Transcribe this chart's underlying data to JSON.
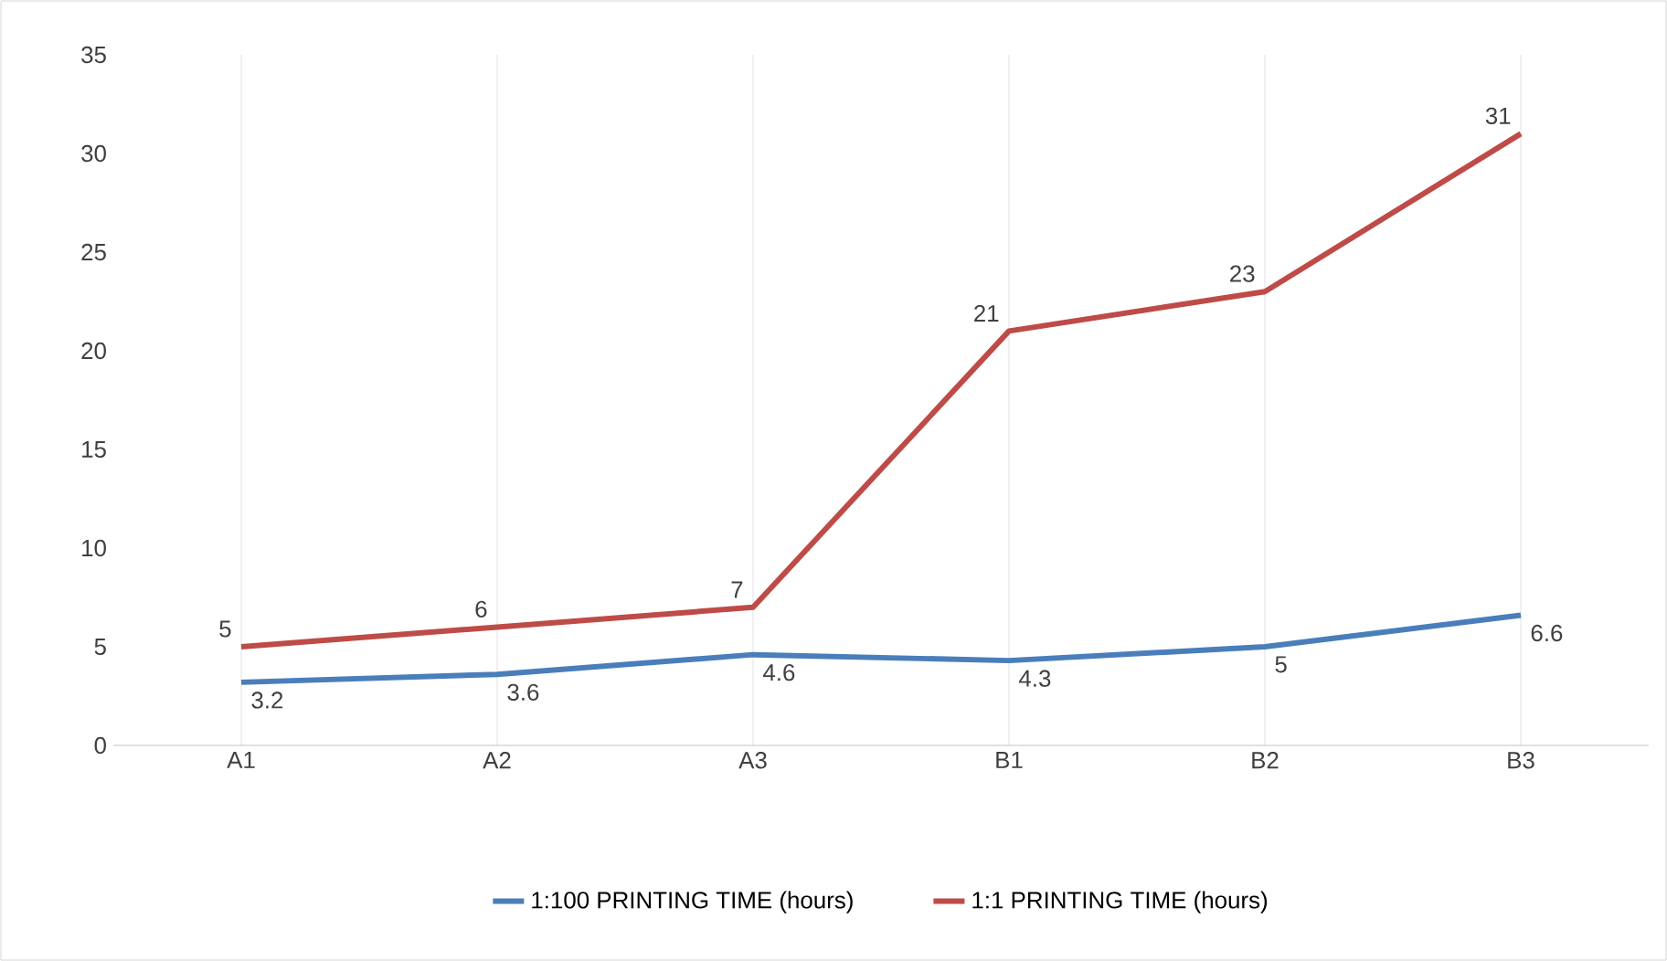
{
  "chart_data": {
    "type": "line",
    "categories": [
      "A1",
      "A2",
      "A3",
      "B1",
      "B2",
      "B3"
    ],
    "series": [
      {
        "name": "1:100 PRINTING TIME (hours)",
        "color": "#4a7ebb",
        "values": [
          3.2,
          3.6,
          4.6,
          4.3,
          5,
          6.6
        ]
      },
      {
        "name": "1:1 PRINTING TIME (hours)",
        "color": "#be4b48",
        "values": [
          5,
          6,
          7,
          21,
          23,
          31
        ]
      }
    ],
    "ylim": [
      0,
      35
    ],
    "yticks": [
      0,
      5,
      10,
      15,
      20,
      25,
      30,
      35
    ],
    "grid": "x",
    "legend": "bottom",
    "data_labels": true,
    "marker": "none",
    "line_style": "solid"
  }
}
